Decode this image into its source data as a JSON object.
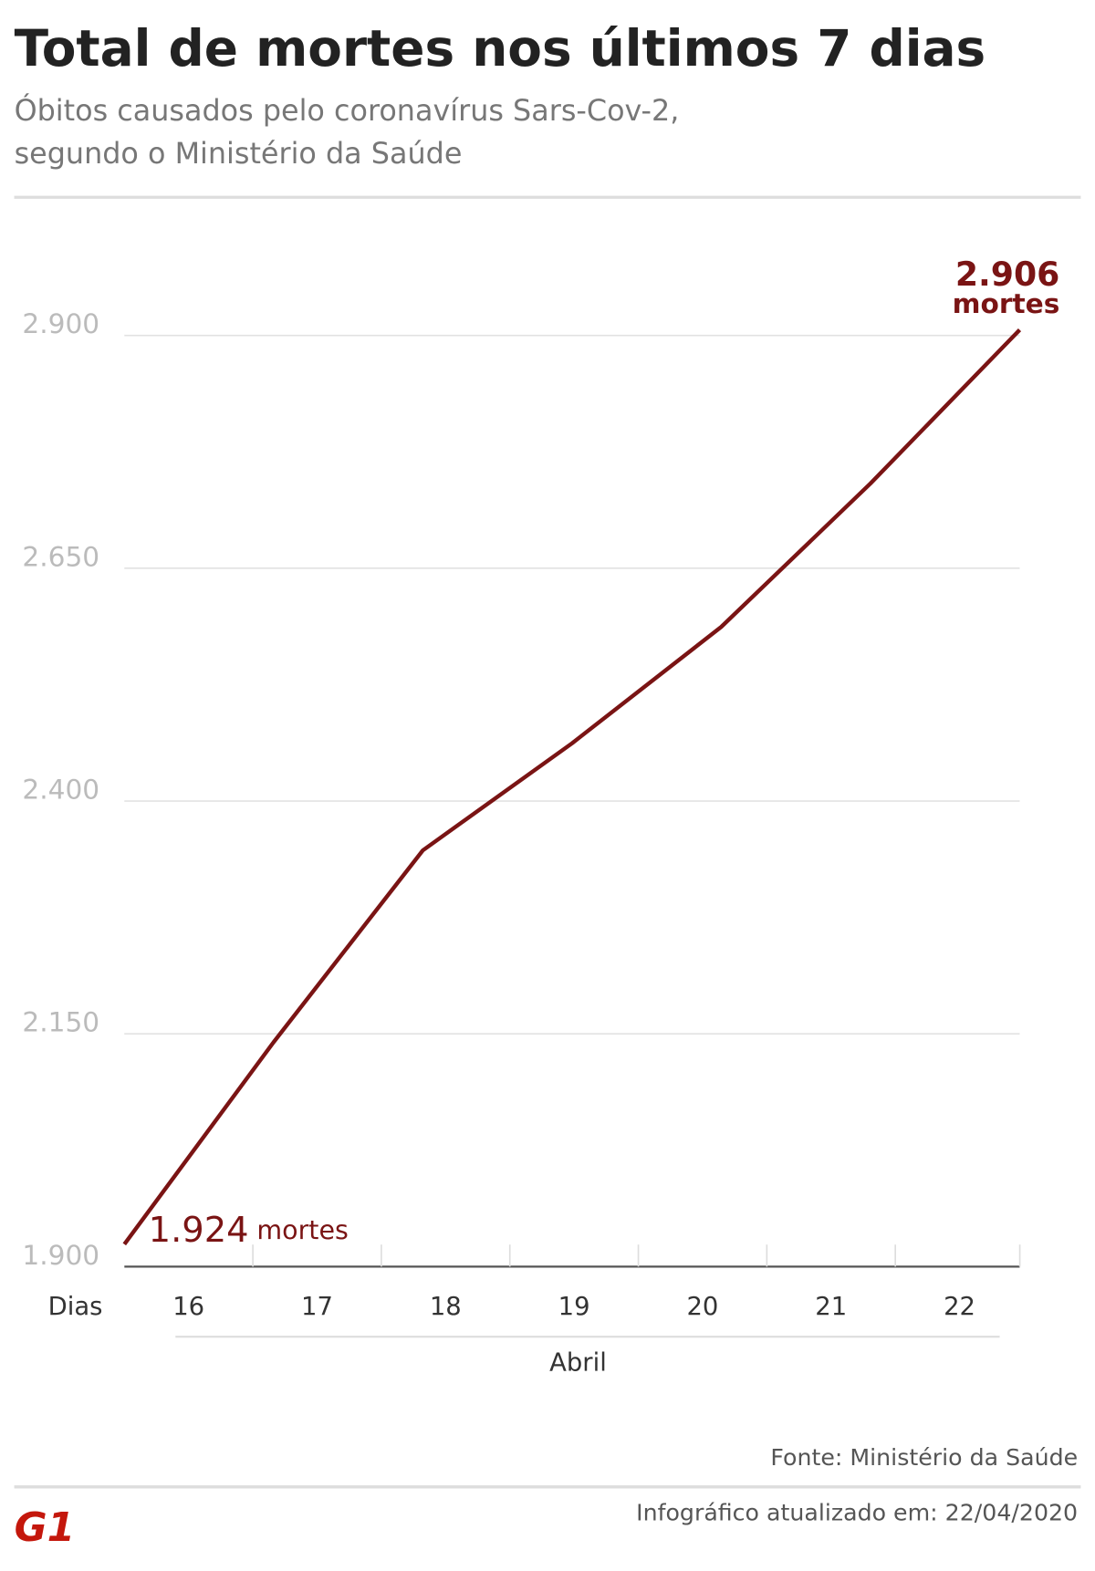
{
  "chart_data": {
    "type": "line",
    "title": "Total de mortes nos últimos 7 dias",
    "subtitle_lines": [
      "Óbitos causados pelo coronavírus Sars-Cov-2,",
      "segundo o Ministério da Saúde"
    ],
    "x_label": "Dias",
    "x_group_label": "Abril",
    "categories": [
      "16",
      "17",
      "18",
      "19",
      "20",
      "21",
      "22"
    ],
    "values": [
      1924,
      2141,
      2347,
      2462,
      2587,
      2741,
      2906
    ],
    "value_labels": [
      "1.924",
      null,
      null,
      null,
      null,
      null,
      "2.906"
    ],
    "value_label_unit": "mortes",
    "color": "#7a1414",
    "ylim": [
      1900,
      2900
    ],
    "yticks": [
      {
        "value": 1900,
        "label": "1.900"
      },
      {
        "value": 2150,
        "label": "2.150"
      },
      {
        "value": 2400,
        "label": "2.400"
      },
      {
        "value": 2650,
        "label": "2.650"
      },
      {
        "value": 2900,
        "label": "2.900"
      }
    ],
    "grid": true,
    "source": "Fonte: Ministério da Saúde",
    "updated": "Infográfico atualizado em: 22/04/2020",
    "logo": "G1"
  }
}
